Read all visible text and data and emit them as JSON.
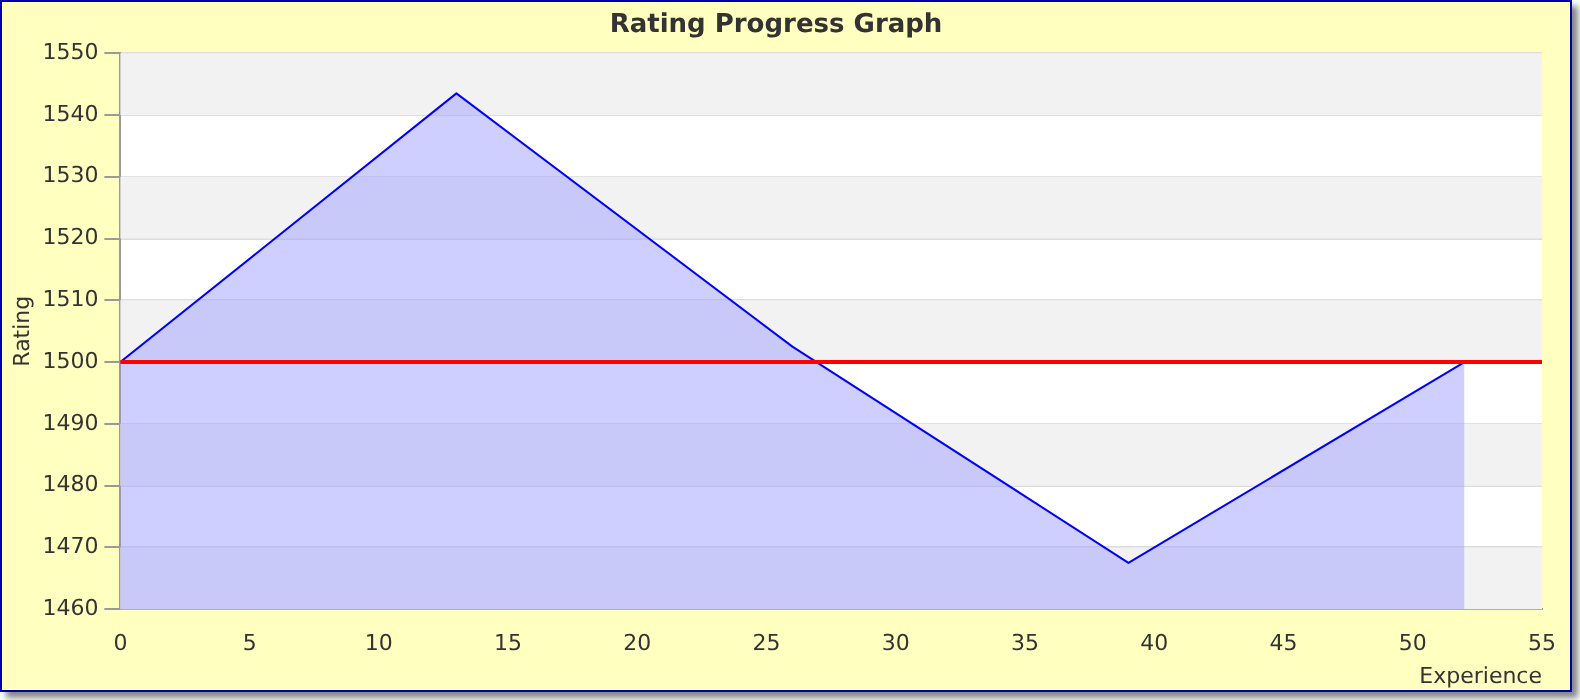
{
  "chart_data": {
    "type": "area",
    "title": "Rating Progress Graph",
    "xlabel": "Experience",
    "ylabel": "Rating",
    "x": [
      0,
      13,
      26,
      39,
      52
    ],
    "series": [
      {
        "color": "#0000ff",
        "values": [
          1500,
          1543.5,
          1502.5,
          1467.5,
          1500
        ]
      }
    ],
    "xlim": [
      0,
      55
    ],
    "xticks": [
      0,
      5,
      10,
      15,
      20,
      25,
      30,
      35,
      40,
      45,
      50,
      55
    ],
    "ylim": [
      1460,
      1550
    ],
    "yticks": [
      1460,
      1470,
      1480,
      1490,
      1500,
      1510,
      1520,
      1530,
      1540,
      1550
    ],
    "grid": "y",
    "legend": false,
    "marker": "none",
    "line_style": "solid",
    "ref_lines": [
      {
        "axis": "y",
        "value": 1500,
        "color": "#ff0000"
      }
    ]
  }
}
